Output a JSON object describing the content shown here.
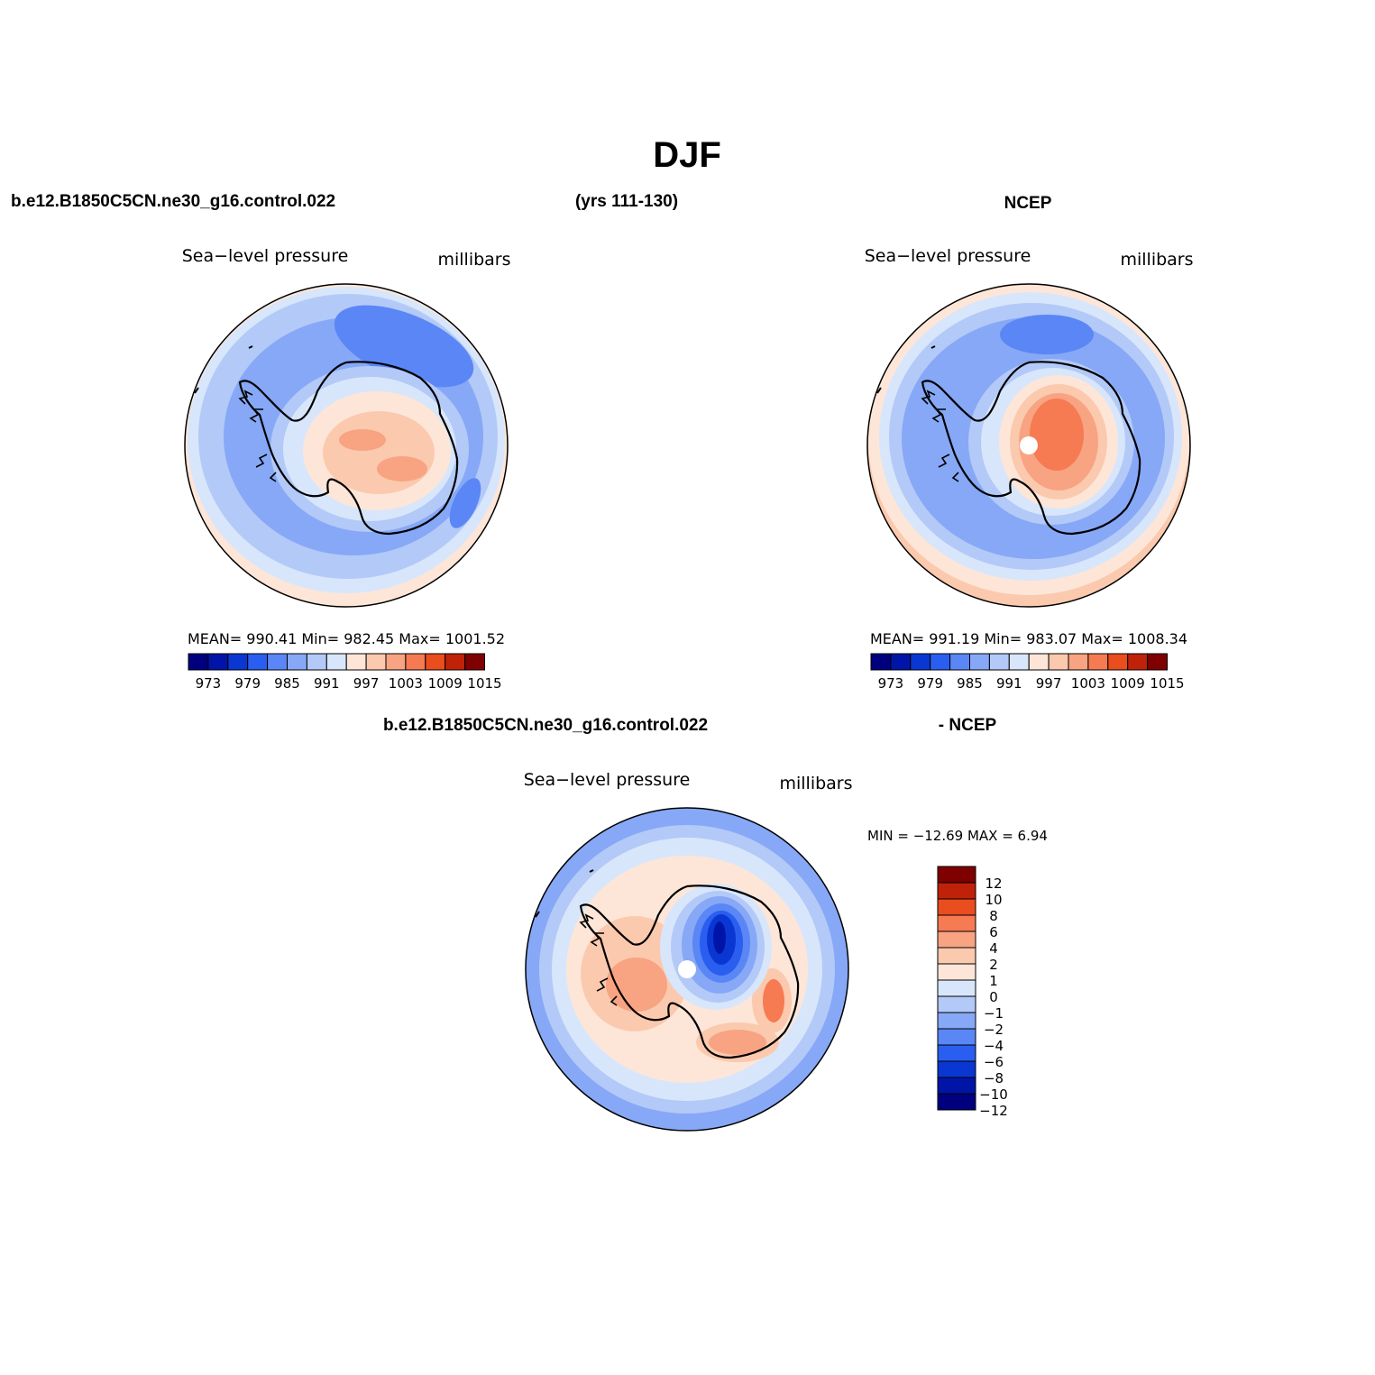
{
  "figure": {
    "title": "DJF",
    "case_name": "b.e12.B1850C5CN.ne30_g16.control.022",
    "years": "(yrs 111-130)",
    "obs_name": "NCEP",
    "diff_case_name": "b.e12.B1850C5CN.ne30_g16.control.022",
    "diff_obs_name": "- NCEP"
  },
  "panels": {
    "model": {
      "variable": "Sea−level pressure",
      "units": "millibars",
      "stats": "MEAN= 990.41   Min= 982.45   Max= 1001.52"
    },
    "obs": {
      "variable": "Sea−level pressure",
      "units": "millibars",
      "stats": "MEAN= 991.19   Min= 983.07   Max= 1008.34"
    },
    "diff": {
      "variable": "Sea−level pressure",
      "units": "millibars",
      "stats": "MIN = −12.69  MAX =    6.94"
    }
  },
  "colorbar_abs": {
    "colors": [
      "#00007f",
      "#0015a8",
      "#0a37d1",
      "#2a5ef0",
      "#5a87f5",
      "#86a8f6",
      "#b3c9f8",
      "#d8e6fb",
      "#fde6d8",
      "#fbc9ae",
      "#f8a382",
      "#f67a52",
      "#ea4d1e",
      "#bf2208",
      "#7f0000"
    ],
    "labels": [
      "973",
      "979",
      "985",
      "991",
      "997",
      "1003",
      "1009",
      "1015"
    ]
  },
  "colorbar_diff": {
    "colors": [
      "#00007f",
      "#0015a8",
      "#0a37d1",
      "#2a5ef0",
      "#5a87f5",
      "#86a8f6",
      "#b3c9f8",
      "#d8e6fb",
      "#fde6d8",
      "#fbc9ae",
      "#f8a382",
      "#f67a52",
      "#ea4d1e",
      "#bf2208",
      "#7f0000"
    ],
    "labels": [
      "12",
      "10",
      "8",
      "6",
      "4",
      "2",
      "1",
      "0",
      "−1",
      "−2",
      "−4",
      "−6",
      "−8",
      "−10",
      "−12"
    ]
  }
}
